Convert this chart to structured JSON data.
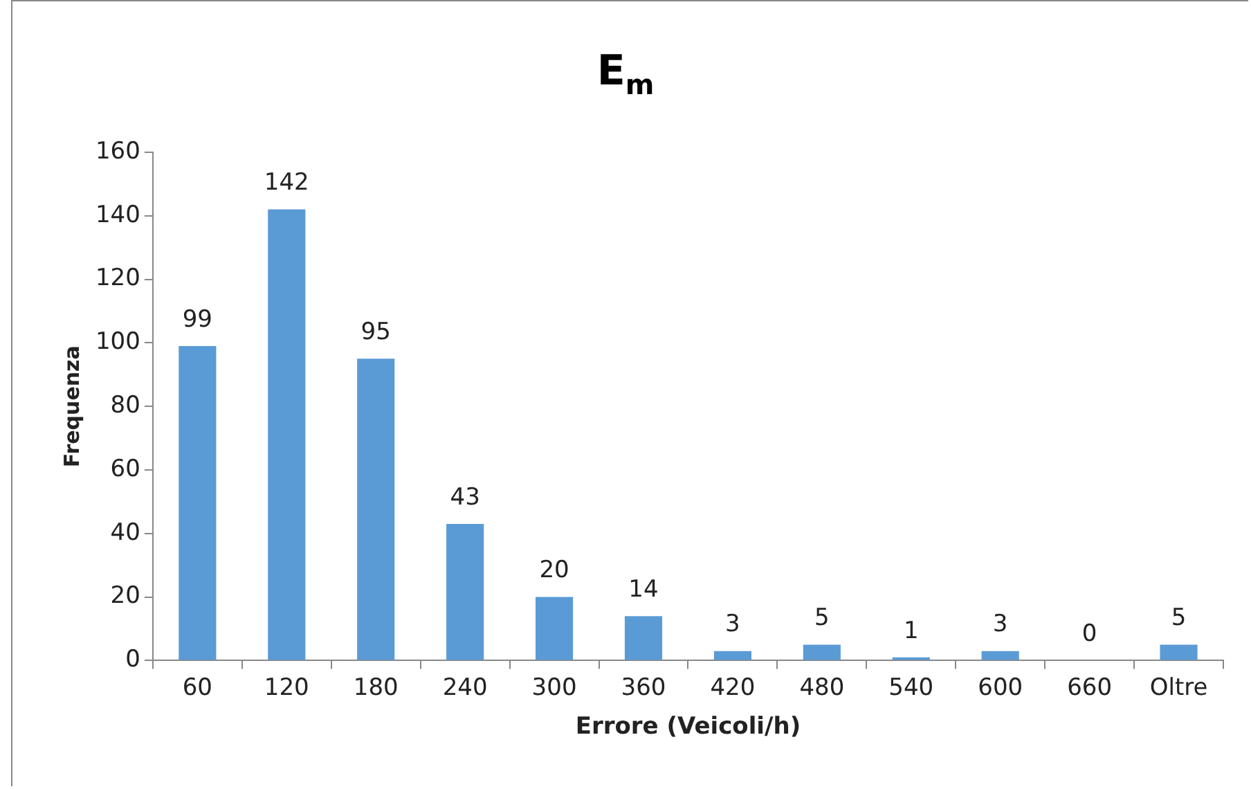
{
  "chart_data": {
    "type": "bar",
    "title": "E$_{m}$",
    "xlabel": "Errore (Veicoli/h)",
    "ylabel": "Frequenza",
    "categories": [
      "60",
      "120",
      "180",
      "240",
      "300",
      "360",
      "420",
      "480",
      "540",
      "600",
      "660",
      "Oltre"
    ],
    "values": [
      99,
      142,
      95,
      43,
      20,
      14,
      3,
      5,
      1,
      3,
      0,
      5
    ],
    "color": "#5b9bd5",
    "ylim": [
      0,
      160
    ],
    "yticks": [
      0,
      20,
      40,
      60,
      80,
      100,
      120,
      140,
      160
    ],
    "grid": false,
    "legend": false,
    "data_labels": true
  }
}
